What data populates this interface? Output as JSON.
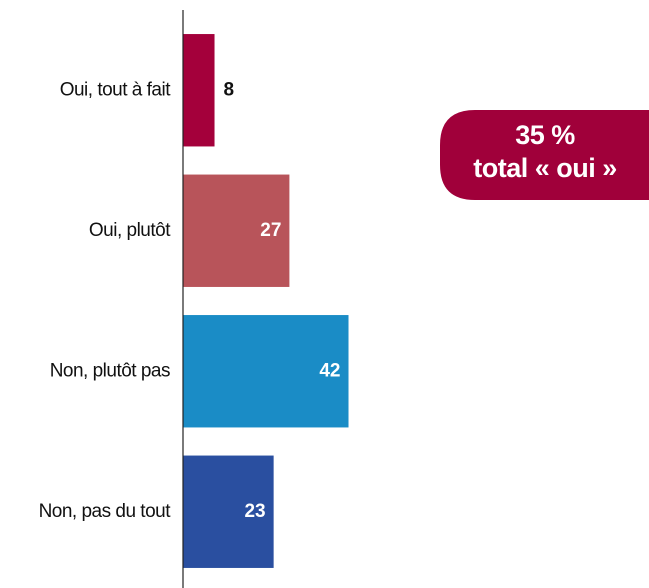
{
  "chart_data": {
    "type": "barh",
    "categories": [
      "Oui, tout à fait",
      "Oui, plutôt",
      "Non, plutôt pas",
      "Non, pas du tout"
    ],
    "values": [
      8,
      27,
      42,
      23
    ],
    "colors": [
      "#a4003b",
      "#b8545a",
      "#1a8cc6",
      "#2a4fa0"
    ],
    "xlim": [
      0,
      118
    ],
    "annotation": [
      "35 %",
      "total « oui »"
    ]
  }
}
